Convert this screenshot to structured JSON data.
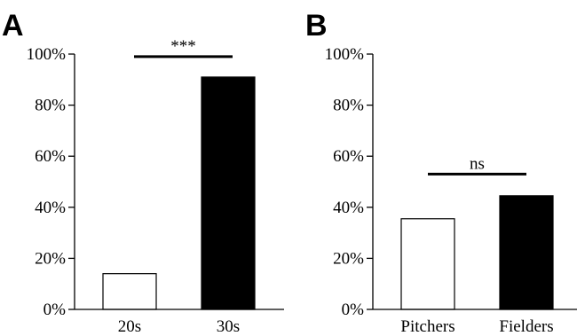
{
  "chart_data": [
    {
      "panel": "A",
      "type": "bar",
      "categories": [
        "20s",
        "30s"
      ],
      "values": [
        14,
        91
      ],
      "bar_colors": [
        "#ffffff",
        "#000000"
      ],
      "yticks": [
        "0%",
        "20%",
        "40%",
        "60%",
        "80%",
        "100%"
      ],
      "ylim": [
        0,
        100
      ],
      "significance": {
        "label": "***",
        "y": 99
      },
      "grid": false
    },
    {
      "panel": "B",
      "type": "bar",
      "categories": [
        "Pitchers",
        "Fielders"
      ],
      "values": [
        35.5,
        44.5
      ],
      "bar_colors": [
        "#ffffff",
        "#000000"
      ],
      "yticks": [
        "0%",
        "20%",
        "40%",
        "60%",
        "80%",
        "100%"
      ],
      "ylim": [
        0,
        100
      ],
      "significance": {
        "label": "ns",
        "y": 53
      },
      "grid": false
    }
  ]
}
